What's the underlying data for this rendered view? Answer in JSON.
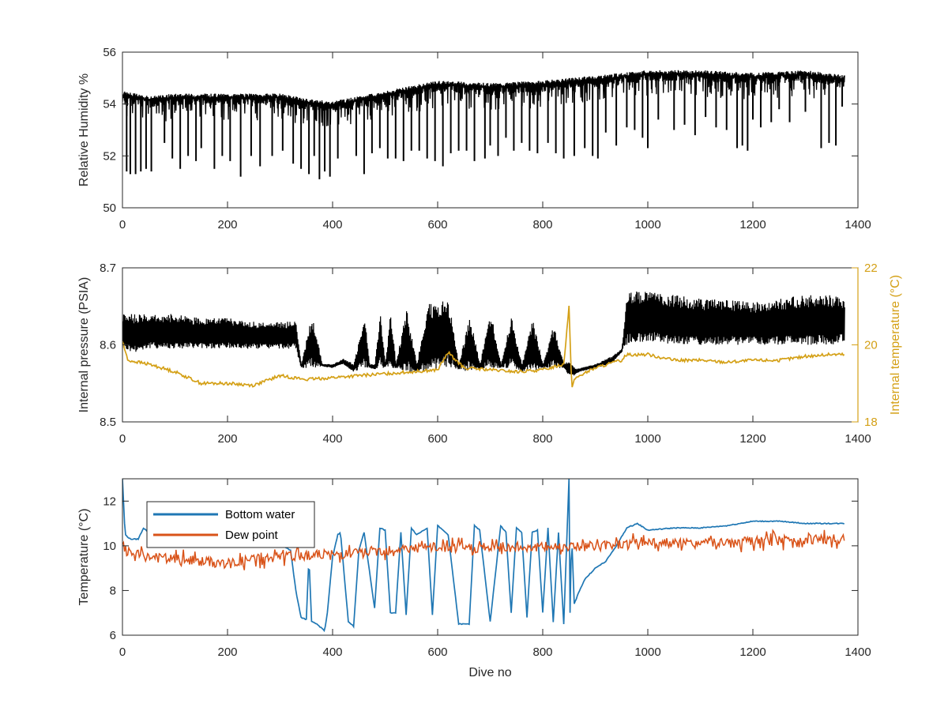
{
  "chart_data": [
    {
      "type": "line",
      "panel": "top",
      "xlabel": "",
      "ylabel": "Relative Humidity %",
      "xlim": [
        0,
        1400
      ],
      "ylim": [
        50,
        56
      ],
      "xticks": [
        0,
        200,
        400,
        600,
        800,
        1000,
        1200,
        1400
      ],
      "yticks": [
        50,
        52,
        54,
        56
      ],
      "grid": false,
      "series": [
        {
          "color": "#000000",
          "style": "dense oscillating series with downward spikes",
          "baseline_x": [
            0,
            50,
            100,
            200,
            300,
            350,
            400,
            450,
            500,
            600,
            700,
            800,
            900,
            1000,
            1100,
            1200,
            1300,
            1375
          ],
          "baseline_y": [
            54.4,
            54.2,
            54.3,
            54.3,
            54.3,
            54.1,
            54.0,
            54.2,
            54.4,
            54.8,
            54.7,
            54.8,
            55.0,
            55.2,
            55.2,
            55.1,
            55.2,
            55.0
          ],
          "spike_x": [
            8,
            15,
            25,
            35,
            45,
            55,
            80,
            95,
            110,
            125,
            140,
            150,
            175,
            190,
            205,
            225,
            245,
            262,
            285,
            305,
            325,
            340,
            355,
            365,
            375,
            385,
            395,
            410,
            445,
            460,
            475,
            490,
            505,
            520,
            535,
            550,
            565,
            580,
            595,
            610,
            625,
            640,
            655,
            670,
            690,
            700,
            715,
            730,
            745,
            760,
            775,
            790,
            810,
            825,
            840,
            860,
            880,
            895,
            905,
            920,
            940,
            960,
            975,
            990,
            1000,
            1020,
            1050,
            1070,
            1090,
            1110,
            1130,
            1150,
            1170,
            1180,
            1190,
            1200,
            1215,
            1235,
            1250,
            1270,
            1300,
            1330,
            1345,
            1358,
            1370
          ],
          "spike_min_y": [
            51.4,
            51.3,
            51.3,
            51.4,
            51.5,
            51.4,
            52.5,
            51.9,
            51.5,
            52.0,
            51.8,
            52.3,
            51.5,
            52.0,
            51.8,
            51.2,
            52.0,
            51.6,
            52.0,
            52.2,
            51.7,
            51.5,
            51.3,
            52.0,
            51.1,
            51.4,
            51.2,
            51.9,
            52.0,
            51.3,
            52.1,
            52.3,
            51.9,
            51.9,
            51.8,
            52.2,
            52.2,
            51.9,
            51.8,
            51.6,
            52.1,
            52.2,
            52.2,
            51.8,
            51.9,
            52.4,
            52.0,
            52.7,
            52.2,
            52.5,
            52.2,
            52.1,
            52.5,
            52.1,
            51.9,
            52.0,
            52.3,
            52.0,
            51.9,
            52.9,
            52.4,
            53.1,
            53.0,
            52.7,
            52.3,
            53.4,
            53.0,
            53.2,
            52.8,
            53.5,
            53.1,
            53.0,
            52.3,
            52.4,
            52.2,
            53.4,
            53.1,
            53.3,
            53.8,
            53.3,
            53.7,
            52.3,
            52.5,
            52.4,
            53.9
          ]
        }
      ]
    },
    {
      "type": "line",
      "panel": "middle",
      "xlabel": "",
      "ylabel": "Internal pressure (PSIA)",
      "ylabel_right": "Internal temperature (°C)",
      "xlim": [
        0,
        1400
      ],
      "ylim": [
        8.5,
        8.7
      ],
      "ylim_right": [
        18,
        22
      ],
      "xticks": [
        0,
        200,
        400,
        600,
        800,
        1000,
        1200,
        1400
      ],
      "yticks": [
        8.5,
        8.6,
        8.7
      ],
      "yticks_labels": [
        "8.5",
        "8.6",
        "8.7"
      ],
      "yticks_right": [
        18,
        20,
        22
      ],
      "grid": false,
      "series": [
        {
          "axis": "left",
          "color": "#000000",
          "style": "band",
          "x": [
            0,
            20,
            50,
            100,
            150,
            200,
            250,
            300,
            330,
            340,
            360,
            380,
            400,
            420,
            440,
            460,
            470,
            480,
            490,
            500,
            510,
            520,
            540,
            560,
            580,
            600,
            620,
            640,
            660,
            680,
            700,
            720,
            740,
            760,
            780,
            800,
            820,
            840,
            850,
            860,
            870,
            900,
            930,
            950,
            960,
            1000,
            1050,
            1100,
            1150,
            1200,
            1250,
            1300,
            1350,
            1375
          ],
          "y_low": [
            8.595,
            8.59,
            8.595,
            8.595,
            8.595,
            8.595,
            8.595,
            8.595,
            8.595,
            8.57,
            8.57,
            8.572,
            8.57,
            8.575,
            8.565,
            8.57,
            8.57,
            8.568,
            8.57,
            8.57,
            8.568,
            8.57,
            8.565,
            8.565,
            8.565,
            8.565,
            8.572,
            8.568,
            8.565,
            8.568,
            8.57,
            8.57,
            8.57,
            8.565,
            8.565,
            8.57,
            8.57,
            8.57,
            8.56,
            8.56,
            8.565,
            8.57,
            8.575,
            8.59,
            8.6,
            8.605,
            8.6,
            8.6,
            8.6,
            8.6,
            8.6,
            8.6,
            8.6,
            8.605
          ],
          "y_high": [
            8.64,
            8.64,
            8.64,
            8.64,
            8.635,
            8.635,
            8.63,
            8.63,
            8.63,
            8.575,
            8.64,
            8.575,
            8.575,
            8.582,
            8.575,
            8.64,
            8.575,
            8.575,
            8.645,
            8.575,
            8.645,
            8.575,
            8.65,
            8.575,
            8.655,
            8.655,
            8.66,
            8.575,
            8.64,
            8.575,
            8.645,
            8.575,
            8.64,
            8.575,
            8.635,
            8.575,
            8.625,
            8.575,
            8.58,
            8.57,
            8.57,
            8.575,
            8.585,
            8.595,
            8.67,
            8.67,
            8.665,
            8.66,
            8.66,
            8.655,
            8.66,
            8.665,
            8.665,
            8.66
          ]
        },
        {
          "axis": "right",
          "color": "#D4A016",
          "x": [
            0,
            10,
            50,
            100,
            150,
            200,
            250,
            300,
            350,
            400,
            450,
            500,
            550,
            600,
            620,
            650,
            700,
            750,
            800,
            840,
            850,
            855,
            860,
            870,
            900,
            950,
            960,
            1000,
            1050,
            1100,
            1150,
            1200,
            1250,
            1300,
            1350,
            1375
          ],
          "y": [
            20.1,
            19.6,
            19.5,
            19.3,
            19.0,
            19.0,
            18.95,
            19.2,
            19.1,
            19.15,
            19.2,
            19.25,
            19.3,
            19.35,
            19.8,
            19.4,
            19.35,
            19.3,
            19.35,
            19.5,
            21.0,
            18.9,
            19.1,
            19.2,
            19.4,
            19.6,
            19.75,
            19.75,
            19.6,
            19.6,
            19.55,
            19.6,
            19.6,
            19.7,
            19.75,
            19.75
          ]
        }
      ]
    },
    {
      "type": "line",
      "panel": "bottom",
      "xlabel": "Dive no",
      "ylabel": "Temperature (°C)",
      "xlim": [
        0,
        1400
      ],
      "ylim": [
        6,
        13
      ],
      "xticks": [
        0,
        200,
        400,
        600,
        800,
        1000,
        1200,
        1400
      ],
      "yticks": [
        6,
        8,
        10,
        12
      ],
      "legend": "top-left",
      "grid": false,
      "series": [
        {
          "name": "Bottom water",
          "color": "#1F77B4",
          "x": [
            0,
            5,
            15,
            30,
            40,
            60,
            100,
            150,
            200,
            250,
            300,
            320,
            330,
            340,
            350,
            355,
            360,
            370,
            380,
            385,
            390,
            400,
            410,
            415,
            430,
            440,
            450,
            460,
            480,
            490,
            500,
            510,
            520,
            530,
            540,
            550,
            560,
            580,
            590,
            600,
            620,
            640,
            660,
            670,
            680,
            700,
            720,
            730,
            740,
            750,
            760,
            770,
            780,
            790,
            800,
            810,
            820,
            830,
            840,
            850,
            852,
            855,
            860,
            870,
            880,
            900,
            920,
            940,
            960,
            980,
            1000,
            1050,
            1100,
            1150,
            1200,
            1250,
            1300,
            1350,
            1375
          ],
          "y": [
            13.0,
            10.5,
            10.3,
            10.3,
            10.8,
            10.4,
            10.2,
            10.2,
            10.1,
            10.2,
            10.1,
            9.8,
            8.0,
            6.8,
            6.7,
            9.5,
            6.6,
            6.5,
            6.3,
            6.2,
            7.0,
            9.5,
            10.5,
            10.6,
            6.6,
            6.4,
            9.8,
            10.6,
            7.2,
            10.8,
            10.7,
            7.0,
            7.0,
            10.6,
            6.9,
            10.8,
            10.5,
            10.8,
            6.9,
            10.9,
            10.5,
            6.5,
            6.5,
            10.9,
            10.7,
            6.6,
            10.9,
            10.6,
            7.0,
            10.8,
            10.6,
            6.8,
            10.6,
            10.7,
            7.0,
            10.8,
            6.6,
            10.6,
            6.5,
            13.0,
            7.0,
            10.5,
            7.4,
            8.0,
            8.5,
            9.0,
            9.3,
            10.0,
            10.8,
            11.0,
            10.7,
            10.8,
            10.8,
            10.9,
            11.1,
            11.1,
            11.0,
            11.0,
            11.0
          ]
        },
        {
          "name": "Dew point",
          "color": "#D95319",
          "x": [
            0,
            10,
            50,
            100,
            150,
            200,
            250,
            300,
            350,
            400,
            450,
            500,
            550,
            600,
            650,
            700,
            750,
            800,
            850,
            900,
            950,
            1000,
            1050,
            1100,
            1150,
            1200,
            1250,
            1300,
            1350,
            1375
          ],
          "y": [
            10.0,
            9.7,
            9.5,
            9.4,
            9.3,
            9.2,
            9.4,
            9.5,
            9.6,
            9.6,
            9.7,
            9.8,
            9.9,
            9.9,
            9.9,
            9.9,
            9.95,
            9.95,
            10.0,
            10.0,
            10.1,
            10.2,
            10.1,
            10.1,
            10.1,
            10.2,
            10.2,
            10.3,
            10.3,
            10.3
          ],
          "spread": 0.45
        }
      ]
    }
  ]
}
